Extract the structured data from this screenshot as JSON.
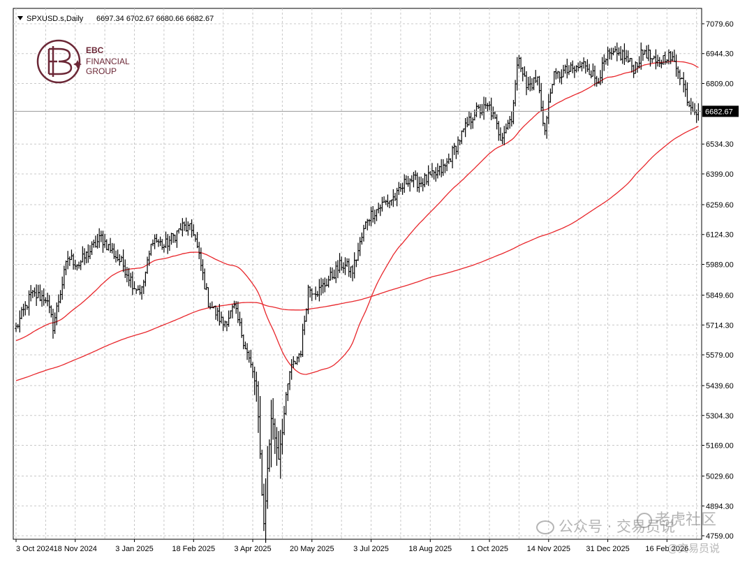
{
  "header": {
    "symbol": "SPXUSD.s,Daily",
    "ohlc": "6697.34 6702.67 6680.66 6682.67"
  },
  "logo": {
    "line1": "EBC",
    "line2": "FINANCIAL",
    "line3": "GROUP",
    "color": "#6b2736"
  },
  "watermark": {
    "wechat": "公众号 · 交易员说",
    "community": "老虎社区",
    "channel": "@交易员说"
  },
  "chart_data": {
    "type": "bar",
    "style": "OHLC price bars with two moving-average lines",
    "current_price": "6682.67",
    "y_ticks": [
      "7079.60",
      "6944.30",
      "6809.00",
      "6682.67",
      "6534.30",
      "6399.00",
      "6259.60",
      "6124.30",
      "5989.00",
      "5849.60",
      "5714.30",
      "5579.00",
      "5439.60",
      "5304.30",
      "5169.00",
      "5029.60",
      "4894.30",
      "4759.00"
    ],
    "y_tick_values": [
      7079.6,
      6944.3,
      6809.0,
      6682.67,
      6534.3,
      6399.0,
      6259.6,
      6124.3,
      5989.0,
      5849.6,
      5714.3,
      5579.0,
      5439.6,
      5304.3,
      5169.0,
      5029.6,
      4894.3,
      4759.0
    ],
    "ylim": [
      4720,
      7110
    ],
    "x_labels": [
      "3 Oct 2024",
      "18 Nov 2024",
      "3 Jan 2025",
      "18 Feb 2025",
      "3 Apr 2025",
      "20 May 2025",
      "3 Jul 2025",
      "18 Aug 2025",
      "1 Oct 2025",
      "14 Nov 2025",
      "31 Dec 2025",
      "16 Feb 2026"
    ],
    "x_label_bars": [
      0,
      32,
      64,
      96,
      128,
      160,
      192,
      224,
      256,
      288,
      320,
      352
    ],
    "bar_count": 370,
    "price_path": [
      [
        0,
        5700
      ],
      [
        8,
        5850
      ],
      [
        16,
        5840
      ],
      [
        20,
        5710
      ],
      [
        28,
        6020
      ],
      [
        34,
        5990
      ],
      [
        46,
        6110
      ],
      [
        58,
        5985
      ],
      [
        64,
        5890
      ],
      [
        68,
        5870
      ],
      [
        74,
        6110
      ],
      [
        80,
        6070
      ],
      [
        90,
        6160
      ],
      [
        96,
        6140
      ],
      [
        104,
        5820
      ],
      [
        112,
        5720
      ],
      [
        118,
        5790
      ],
      [
        124,
        5620
      ],
      [
        130,
        5430
      ],
      [
        134,
        4810
      ],
      [
        138,
        5300
      ],
      [
        142,
        5120
      ],
      [
        148,
        5500
      ],
      [
        154,
        5600
      ],
      [
        158,
        5880
      ],
      [
        164,
        5870
      ],
      [
        170,
        5930
      ],
      [
        176,
        5990
      ],
      [
        182,
        5960
      ],
      [
        190,
        6200
      ],
      [
        198,
        6260
      ],
      [
        206,
        6300
      ],
      [
        212,
        6380
      ],
      [
        218,
        6360
      ],
      [
        226,
        6390
      ],
      [
        232,
        6430
      ],
      [
        240,
        6560
      ],
      [
        248,
        6680
      ],
      [
        256,
        6700
      ],
      [
        262,
        6570
      ],
      [
        268,
        6660
      ],
      [
        272,
        6940
      ],
      [
        276,
        6790
      ],
      [
        282,
        6830
      ],
      [
        286,
        6590
      ],
      [
        290,
        6830
      ],
      [
        296,
        6860
      ],
      [
        302,
        6870
      ],
      [
        308,
        6900
      ],
      [
        314,
        6820
      ],
      [
        320,
        6930
      ],
      [
        328,
        6940
      ],
      [
        334,
        6880
      ],
      [
        340,
        6960
      ],
      [
        346,
        6890
      ],
      [
        352,
        6940
      ],
      [
        358,
        6880
      ],
      [
        364,
        6720
      ],
      [
        369,
        6682.67
      ]
    ],
    "series": [
      {
        "values": "~50-day moving average of closes",
        "color": "#e8262b"
      },
      {
        "values": "~200-day moving average of closes",
        "color": "#e8262b"
      }
    ],
    "grid": true,
    "bar_color": "#000000",
    "grid_color": "#c8c8c8"
  }
}
